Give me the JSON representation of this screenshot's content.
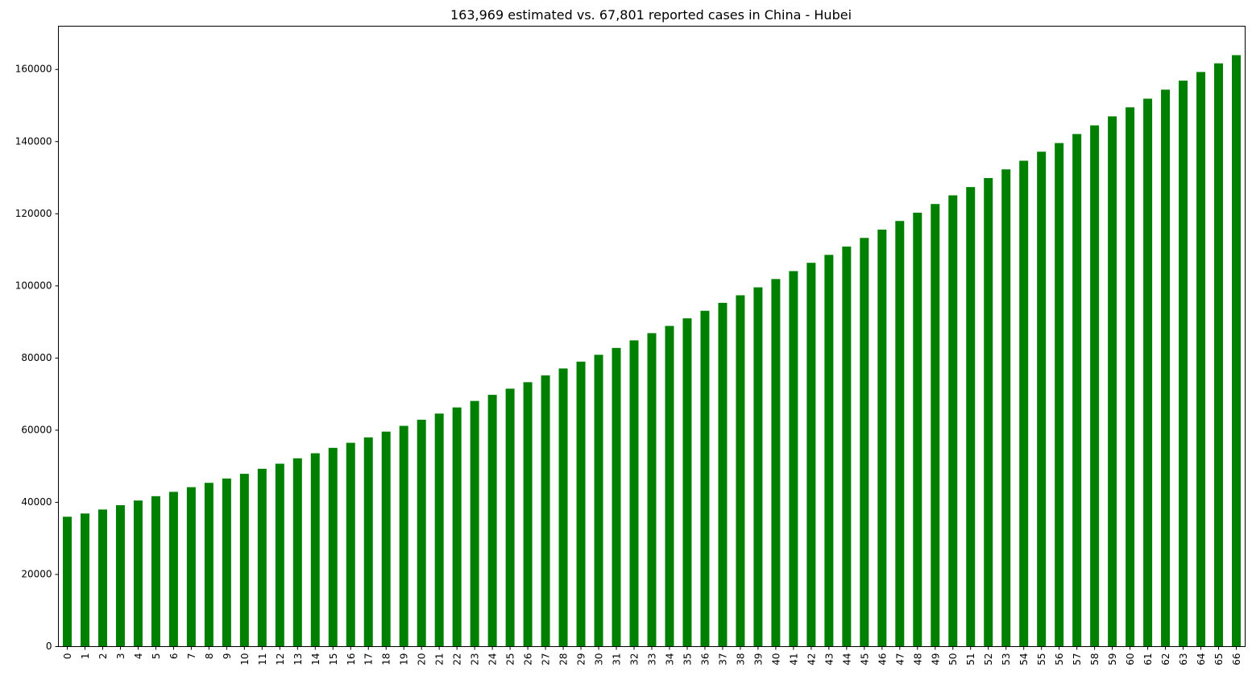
{
  "chart_data": {
    "type": "bar",
    "title": "163,969 estimated vs. 67,801 reported cases in China - Hubei",
    "xlabel": "",
    "ylabel": "",
    "ylim": [
      0,
      172000
    ],
    "yticks": [
      0,
      20000,
      40000,
      60000,
      80000,
      100000,
      120000,
      140000,
      160000
    ],
    "ytick_labels": [
      "0",
      "20000",
      "40000",
      "60000",
      "80000",
      "100000",
      "120000",
      "140000",
      "160000"
    ],
    "grid": false,
    "legend": "none",
    "bar_color": "#008000",
    "categories": [
      "0",
      "1",
      "2",
      "3",
      "4",
      "5",
      "6",
      "7",
      "8",
      "9",
      "10",
      "11",
      "12",
      "13",
      "14",
      "15",
      "16",
      "17",
      "18",
      "19",
      "20",
      "21",
      "22",
      "23",
      "24",
      "25",
      "26",
      "27",
      "28",
      "29",
      "30",
      "31",
      "32",
      "33",
      "34",
      "35",
      "36",
      "37",
      "38",
      "39",
      "40",
      "41",
      "42",
      "43",
      "44",
      "45",
      "46",
      "47",
      "48",
      "49",
      "50",
      "51",
      "52",
      "53",
      "54",
      "55",
      "56",
      "57",
      "58",
      "59",
      "60",
      "61",
      "62",
      "63",
      "64",
      "65",
      "66"
    ],
    "values": [
      36000,
      36900,
      38000,
      39200,
      40500,
      41700,
      42900,
      44200,
      45400,
      46600,
      47900,
      49300,
      50700,
      52200,
      53600,
      55100,
      56500,
      58000,
      59600,
      61200,
      62900,
      64600,
      66300,
      68100,
      69800,
      71500,
      73300,
      75200,
      77100,
      79000,
      80900,
      82800,
      84900,
      86900,
      88900,
      91000,
      93100,
      95300,
      97400,
      99600,
      101900,
      104100,
      106400,
      108600,
      110900,
      113300,
      115600,
      118000,
      120300,
      122700,
      125100,
      127400,
      129900,
      132300,
      134700,
      137200,
      139600,
      142100,
      144500,
      147000,
      149500,
      151900,
      154400,
      156900,
      159300,
      161700,
      163969
    ]
  }
}
